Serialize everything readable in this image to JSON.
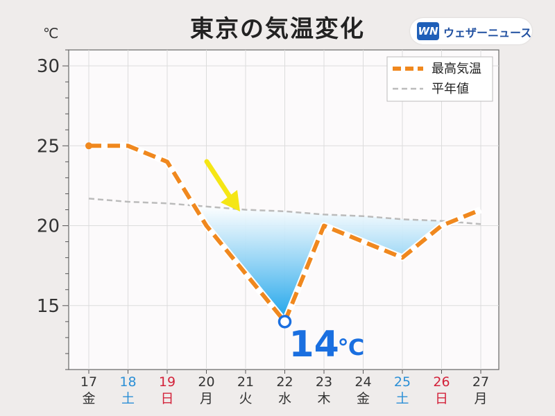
{
  "title": "東京の気温変化",
  "brand": {
    "mark": "WN",
    "name": "ウェザーニュース"
  },
  "chart_data": {
    "type": "line",
    "unit_label": "℃",
    "ylim": [
      11,
      31
    ],
    "y_ticks": [
      15,
      20,
      25,
      30
    ],
    "x": [
      17,
      18,
      19,
      20,
      21,
      22,
      23,
      24,
      25,
      26,
      27
    ],
    "x_labels": [
      "17",
      "18",
      "19",
      "20",
      "21",
      "22",
      "23",
      "24",
      "25",
      "26",
      "27"
    ],
    "weekdays": [
      "金",
      "土",
      "日",
      "月",
      "火",
      "水",
      "木",
      "金",
      "土",
      "日",
      "月"
    ],
    "weekday_colors": [
      "#333333",
      "#2b8fd6",
      "#d3223a",
      "#333333",
      "#333333",
      "#333333",
      "#333333",
      "#333333",
      "#2b8fd6",
      "#d3223a",
      "#333333"
    ],
    "grid": true,
    "legend": "top-right",
    "series": [
      {
        "name": "最高気温",
        "values": [
          25,
          25,
          24,
          20,
          17,
          14,
          20,
          19,
          18,
          20,
          21
        ],
        "color": "#f0881e",
        "style": "dashed-thick"
      },
      {
        "name": "平年値",
        "values": [
          21.7,
          21.5,
          21.4,
          21.2,
          21.0,
          20.9,
          20.7,
          20.6,
          20.4,
          20.3,
          20.1
        ],
        "color": "#bbbbbb",
        "style": "dashed-thin"
      }
    ],
    "annotation": {
      "x": 22,
      "y": 14,
      "label": "14",
      "unit": "℃"
    }
  }
}
